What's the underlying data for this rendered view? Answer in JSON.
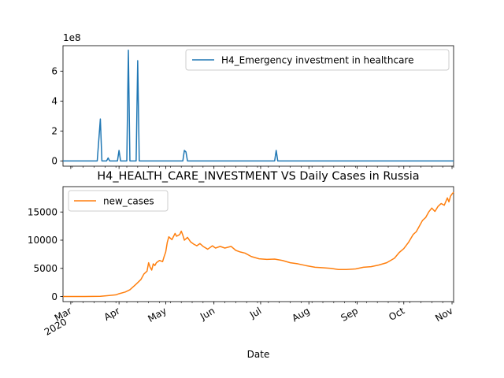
{
  "chart_data": [
    {
      "type": "line",
      "title": "",
      "xlabel": "",
      "ylabel": "",
      "offset_text": "1e8",
      "scale": 100000000,
      "ylim": [
        -0.35,
        7.7
      ],
      "yticks": [
        0,
        2,
        4,
        6
      ],
      "grid": false,
      "legend_position": "top-right",
      "color": "#1f77b4",
      "series": [
        {
          "name": "H4_Emergency investment in healthcare",
          "points": [
            [
              "2020-02-25",
              0
            ],
            [
              "2020-03-18",
              0
            ],
            [
              "2020-03-19",
              1.4
            ],
            [
              "2020-03-20",
              2.8
            ],
            [
              "2020-03-21",
              0
            ],
            [
              "2020-03-24",
              0
            ],
            [
              "2020-03-25",
              0.2
            ],
            [
              "2020-03-26",
              0
            ],
            [
              "2020-03-31",
              0
            ],
            [
              "2020-04-01",
              0.7
            ],
            [
              "2020-04-02",
              0
            ],
            [
              "2020-04-06",
              0
            ],
            [
              "2020-04-07",
              7.4
            ],
            [
              "2020-04-08",
              0
            ],
            [
              "2020-04-12",
              0
            ],
            [
              "2020-04-13",
              6.7
            ],
            [
              "2020-04-14",
              0
            ],
            [
              "2020-05-12",
              0
            ],
            [
              "2020-05-13",
              0.7
            ],
            [
              "2020-05-14",
              0.6
            ],
            [
              "2020-05-15",
              0
            ],
            [
              "2020-07-10",
              0
            ],
            [
              "2020-07-11",
              0.7
            ],
            [
              "2020-07-12",
              0
            ],
            [
              "2020-11-02",
              0
            ]
          ]
        }
      ]
    },
    {
      "type": "line",
      "title": "H4_HEALTH_CARE_INVESTMENT VS Daily Cases in Russia",
      "xlabel": "Date",
      "ylabel": "",
      "ylim": [
        -900,
        19500
      ],
      "yticks": [
        0,
        5000,
        10000,
        15000
      ],
      "xlim": [
        "2020-02-25",
        "2020-11-02"
      ],
      "x_major_ticks": [
        {
          "date": "2020-03-01",
          "label": "Mar",
          "sub": "2020"
        },
        {
          "date": "2020-04-01",
          "label": "Apr"
        },
        {
          "date": "2020-05-01",
          "label": "May"
        },
        {
          "date": "2020-06-01",
          "label": "Jun"
        },
        {
          "date": "2020-07-01",
          "label": "Jul"
        },
        {
          "date": "2020-08-01",
          "label": "Aug"
        },
        {
          "date": "2020-09-01",
          "label": "Sep"
        },
        {
          "date": "2020-10-01",
          "label": "Oct"
        },
        {
          "date": "2020-11-01",
          "label": "Nov"
        }
      ],
      "grid": false,
      "legend_position": "top-left",
      "color": "#ff7f0e",
      "series": [
        {
          "name": "new_cases",
          "points": [
            [
              "2020-02-25",
              0
            ],
            [
              "2020-03-10",
              5
            ],
            [
              "2020-03-20",
              50
            ],
            [
              "2020-03-25",
              160
            ],
            [
              "2020-03-30",
              300
            ],
            [
              "2020-04-01",
              500
            ],
            [
              "2020-04-05",
              800
            ],
            [
              "2020-04-08",
              1200
            ],
            [
              "2020-04-12",
              2200
            ],
            [
              "2020-04-15",
              3000
            ],
            [
              "2020-04-17",
              4000
            ],
            [
              "2020-04-19",
              4500
            ],
            [
              "2020-04-20",
              6000
            ],
            [
              "2020-04-21",
              5200
            ],
            [
              "2020-04-22",
              4700
            ],
            [
              "2020-04-23",
              5800
            ],
            [
              "2020-04-24",
              5500
            ],
            [
              "2020-04-25",
              6000
            ],
            [
              "2020-04-27",
              6400
            ],
            [
              "2020-04-29",
              6200
            ],
            [
              "2020-04-30",
              7100
            ],
            [
              "2020-05-01",
              7900
            ],
            [
              "2020-05-02",
              9600
            ],
            [
              "2020-05-03",
              10600
            ],
            [
              "2020-05-05",
              10100
            ],
            [
              "2020-05-07",
              11200
            ],
            [
              "2020-05-08",
              10700
            ],
            [
              "2020-05-10",
              11000
            ],
            [
              "2020-05-11",
              11600
            ],
            [
              "2020-05-12",
              10900
            ],
            [
              "2020-05-13",
              10000
            ],
            [
              "2020-05-15",
              10500
            ],
            [
              "2020-05-17",
              9700
            ],
            [
              "2020-05-19",
              9300
            ],
            [
              "2020-05-21",
              9000
            ],
            [
              "2020-05-23",
              9400
            ],
            [
              "2020-05-25",
              8900
            ],
            [
              "2020-05-28",
              8400
            ],
            [
              "2020-05-31",
              9000
            ],
            [
              "2020-06-02",
              8600
            ],
            [
              "2020-06-05",
              8900
            ],
            [
              "2020-06-08",
              8600
            ],
            [
              "2020-06-12",
              8900
            ],
            [
              "2020-06-15",
              8200
            ],
            [
              "2020-06-18",
              7900
            ],
            [
              "2020-06-21",
              7700
            ],
            [
              "2020-06-25",
              7100
            ],
            [
              "2020-06-30",
              6700
            ],
            [
              "2020-07-05",
              6600
            ],
            [
              "2020-07-10",
              6650
            ],
            [
              "2020-07-15",
              6400
            ],
            [
              "2020-07-20",
              6000
            ],
            [
              "2020-07-25",
              5800
            ],
            [
              "2020-07-30",
              5500
            ],
            [
              "2020-08-05",
              5200
            ],
            [
              "2020-08-10",
              5100
            ],
            [
              "2020-08-15",
              5000
            ],
            [
              "2020-08-20",
              4800
            ],
            [
              "2020-08-25",
              4800
            ],
            [
              "2020-08-31",
              4900
            ],
            [
              "2020-09-05",
              5200
            ],
            [
              "2020-09-10",
              5300
            ],
            [
              "2020-09-15",
              5600
            ],
            [
              "2020-09-20",
              6000
            ],
            [
              "2020-09-25",
              6800
            ],
            [
              "2020-09-28",
              7800
            ],
            [
              "2020-10-01",
              8500
            ],
            [
              "2020-10-04",
              9600
            ],
            [
              "2020-10-07",
              11000
            ],
            [
              "2020-10-09",
              11500
            ],
            [
              "2020-10-11",
              12500
            ],
            [
              "2020-10-13",
              13500
            ],
            [
              "2020-10-15",
              14000
            ],
            [
              "2020-10-17",
              15000
            ],
            [
              "2020-10-19",
              15700
            ],
            [
              "2020-10-21",
              15100
            ],
            [
              "2020-10-23",
              16000
            ],
            [
              "2020-10-25",
              16500
            ],
            [
              "2020-10-27",
              16200
            ],
            [
              "2020-10-29",
              17500
            ],
            [
              "2020-10-30",
              16800
            ],
            [
              "2020-10-31",
              17800
            ],
            [
              "2020-11-01",
              18200
            ],
            [
              "2020-11-02",
              18500
            ]
          ]
        }
      ]
    }
  ]
}
